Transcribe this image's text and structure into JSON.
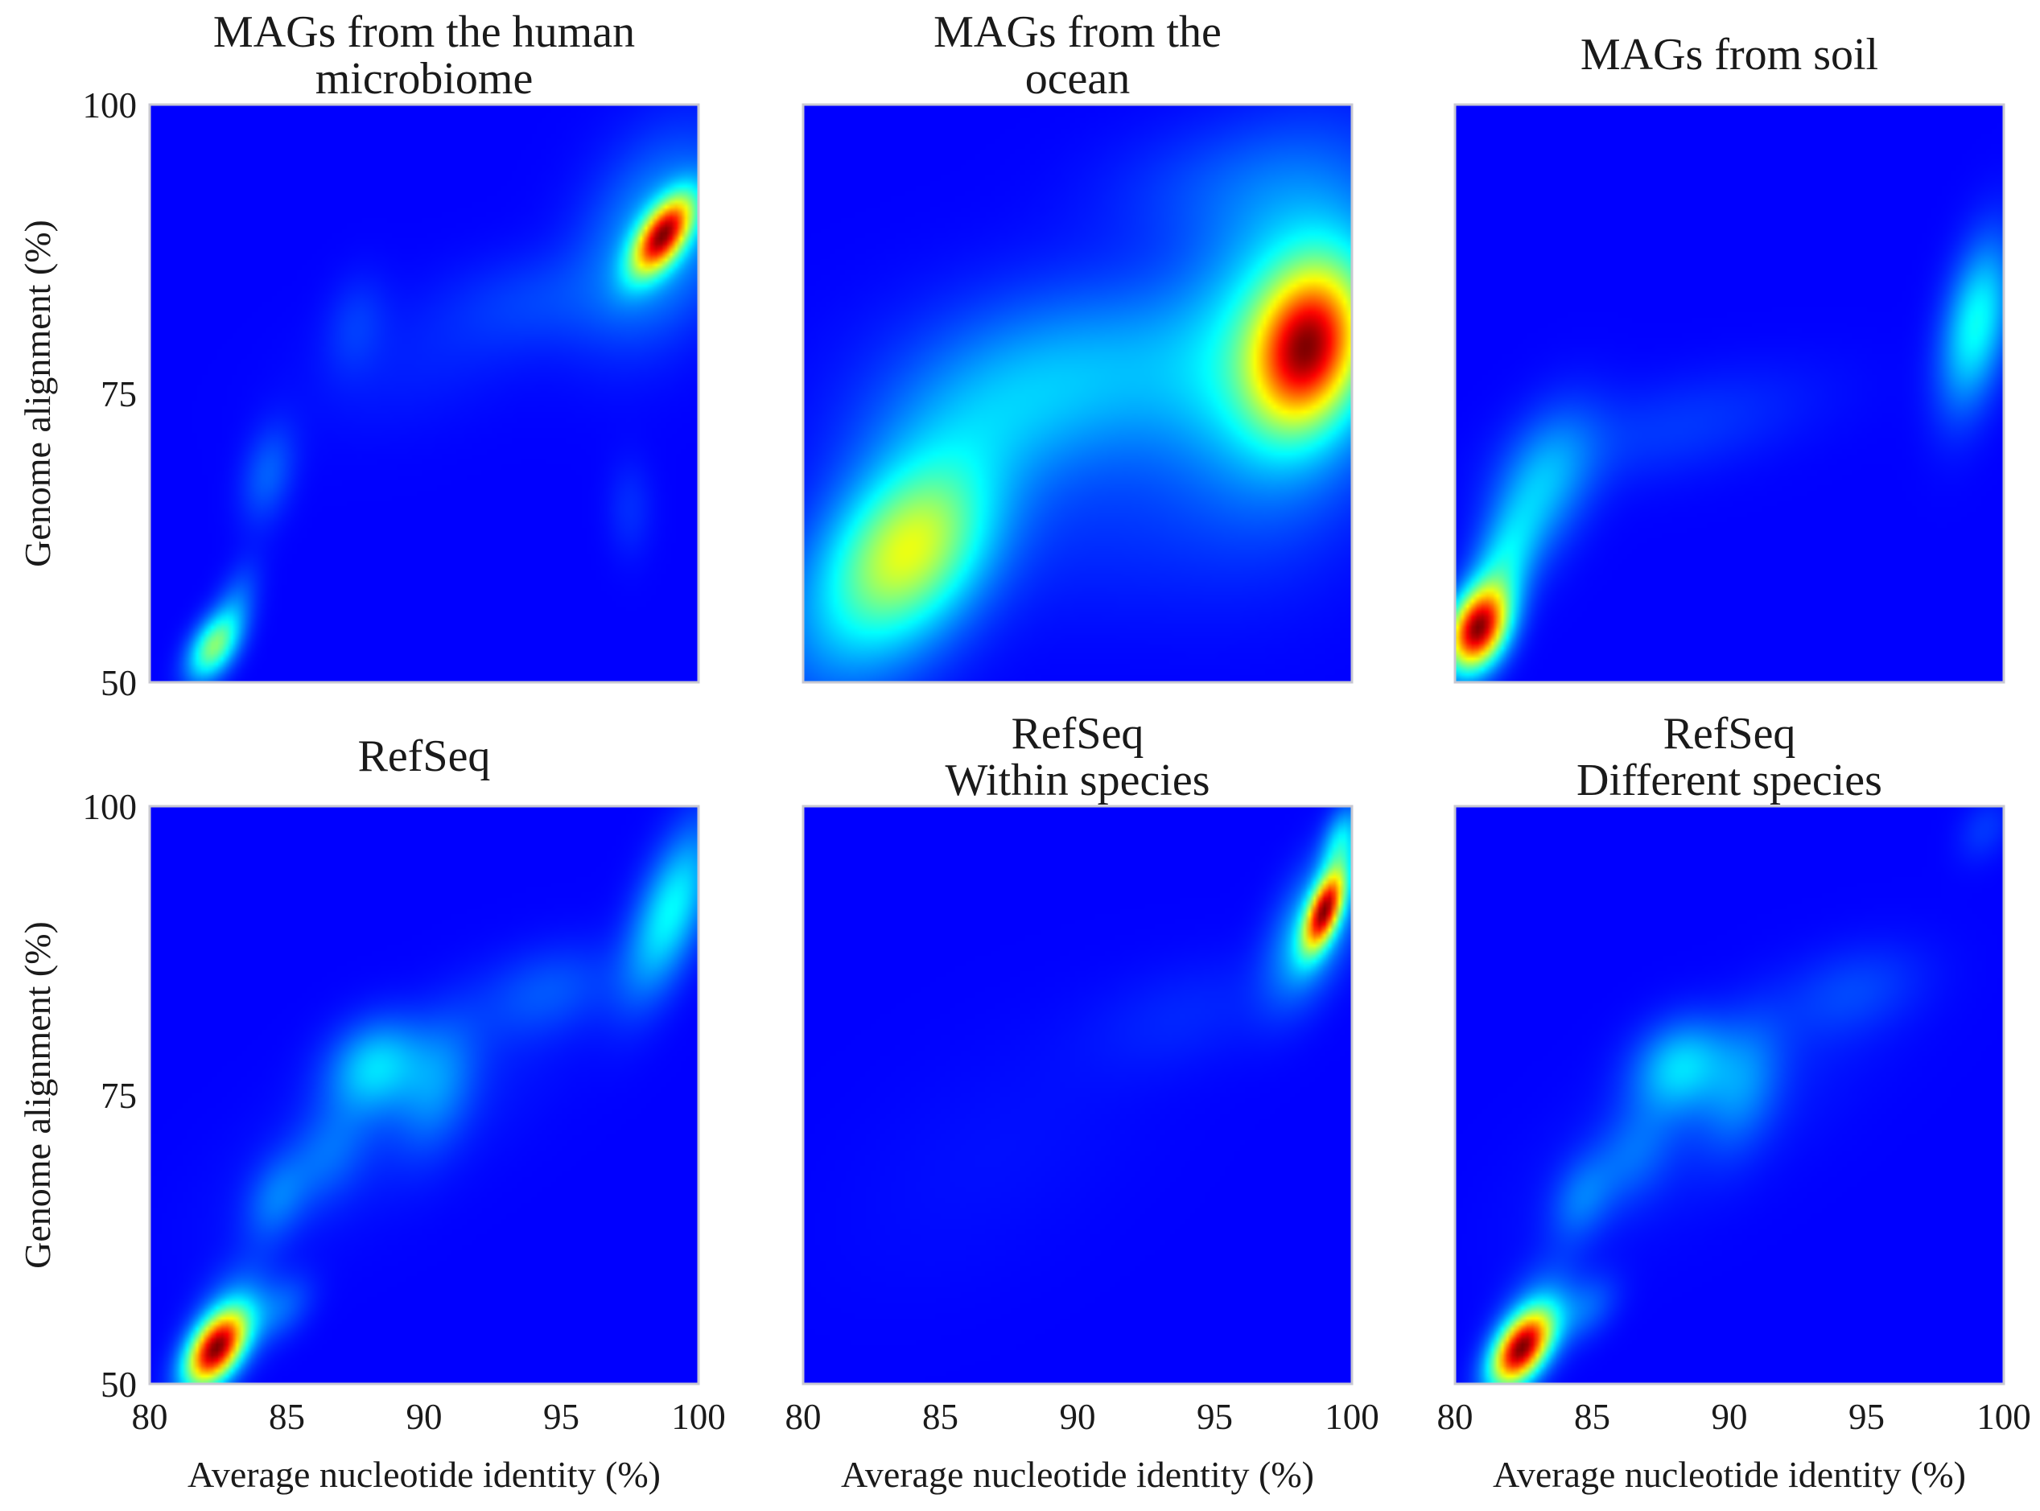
{
  "chart_data": [
    {
      "type": "heatmap",
      "title": [
        "MAGs from the human",
        "microbiome"
      ],
      "xlabel": "",
      "ylabel": "Genome alignment (%)",
      "xlim": [
        80,
        100
      ],
      "ylim": [
        50,
        100
      ],
      "xticks": [],
      "yticks": [
        "50",
        "75",
        "100"
      ],
      "grid": false,
      "density_peaks": [
        {
          "x": 98.7,
          "y": 88.7,
          "sx": 0.75,
          "sy": 2.3,
          "rho": 0.6,
          "w": 1.0
        },
        {
          "x": 98.6,
          "y": 88.6,
          "sx": 1.9,
          "sy": 6.0,
          "rho": 0.3,
          "w": 0.24
        },
        {
          "x": 82.3,
          "y": 53.0,
          "sx": 0.65,
          "sy": 2.0,
          "rho": 0.45,
          "w": 0.5
        },
        {
          "x": 83.1,
          "y": 56.5,
          "sx": 0.6,
          "sy": 2.6,
          "rho": 0.5,
          "w": 0.14
        },
        {
          "x": 84.3,
          "y": 68.0,
          "sx": 0.7,
          "sy": 3.0,
          "rho": 0.3,
          "w": 0.13
        },
        {
          "x": 87.5,
          "y": 81.0,
          "sx": 0.8,
          "sy": 3.0,
          "rho": 0.2,
          "w": 0.07
        },
        {
          "x": 97.5,
          "y": 65.0,
          "sx": 0.6,
          "sy": 3.0,
          "rho": 0.0,
          "w": 0.06
        },
        {
          "x": 94.0,
          "y": 83.0,
          "sx": 2.2,
          "sy": 3.0,
          "rho": 0.2,
          "w": 0.07
        },
        {
          "x": 90.0,
          "y": 78.0,
          "sx": 3.0,
          "sy": 4.5,
          "rho": 0.4,
          "w": 0.04
        }
      ]
    },
    {
      "type": "heatmap",
      "title": [
        "MAGs from the",
        "ocean"
      ],
      "xlabel": "",
      "ylabel": "",
      "xlim": [
        80,
        100
      ],
      "ylim": [
        50,
        100
      ],
      "xticks": [],
      "yticks": [],
      "grid": false,
      "density_peaks": [
        {
          "x": 98.4,
          "y": 79.0,
          "sx": 1.3,
          "sy": 4.5,
          "rho": 0.2,
          "w": 1.0
        },
        {
          "x": 98.0,
          "y": 80.0,
          "sx": 2.6,
          "sy": 9.5,
          "rho": 0.2,
          "w": 0.5
        },
        {
          "x": 84.0,
          "y": 62.0,
          "sx": 2.0,
          "sy": 5.0,
          "rho": 0.3,
          "w": 0.6
        },
        {
          "x": 82.5,
          "y": 57.0,
          "sx": 2.6,
          "sy": 6.5,
          "rho": 0.4,
          "w": 0.3
        },
        {
          "x": 91.0,
          "y": 77.0,
          "sx": 4.5,
          "sy": 5.5,
          "rho": 0.1,
          "w": 0.28
        },
        {
          "x": 86.0,
          "y": 72.0,
          "sx": 3.0,
          "sy": 5.0,
          "rho": 0.3,
          "w": 0.18
        },
        {
          "x": 95.0,
          "y": 93.0,
          "sx": 3.0,
          "sy": 4.0,
          "rho": 0.2,
          "w": 0.1
        },
        {
          "x": 91.0,
          "y": 64.0,
          "sx": 4.0,
          "sy": 6.0,
          "rho": 0.0,
          "w": 0.07
        }
      ]
    },
    {
      "type": "heatmap",
      "title": [
        "MAGs from soil"
      ],
      "xlabel": "",
      "ylabel": "",
      "xlim": [
        80,
        100
      ],
      "ylim": [
        50,
        100
      ],
      "xticks": [],
      "yticks": [],
      "grid": false,
      "density_peaks": [
        {
          "x": 80.8,
          "y": 54.5,
          "sx": 0.75,
          "sy": 2.4,
          "rho": 0.3,
          "w": 1.0
        },
        {
          "x": 81.6,
          "y": 59.0,
          "sx": 0.9,
          "sy": 4.0,
          "rho": 0.5,
          "w": 0.28
        },
        {
          "x": 83.2,
          "y": 67.0,
          "sx": 1.3,
          "sy": 4.5,
          "rho": 0.4,
          "w": 0.22
        },
        {
          "x": 99.0,
          "y": 81.0,
          "sx": 0.9,
          "sy": 5.0,
          "rho": 0.4,
          "w": 0.34
        },
        {
          "x": 88.0,
          "y": 72.0,
          "sx": 3.5,
          "sy": 3.5,
          "rho": 0.5,
          "w": 0.07
        }
      ]
    },
    {
      "type": "heatmap",
      "title": [
        "RefSeq"
      ],
      "xlabel": "Average nucleotide identity (%)",
      "ylabel": "Genome alignment (%)",
      "xlim": [
        80,
        100
      ],
      "ylim": [
        50,
        100
      ],
      "xticks": [
        "80",
        "85",
        "90",
        "95",
        "100"
      ],
      "yticks": [
        "50",
        "75",
        "100"
      ],
      "grid": false,
      "density_peaks": [
        {
          "x": 82.4,
          "y": 53.0,
          "sx": 0.75,
          "sy": 2.2,
          "rho": 0.5,
          "w": 1.0
        },
        {
          "x": 82.8,
          "y": 55.0,
          "sx": 1.0,
          "sy": 3.5,
          "rho": 0.5,
          "w": 0.2
        },
        {
          "x": 84.8,
          "y": 56.5,
          "sx": 0.8,
          "sy": 2.0,
          "rho": 0.4,
          "w": 0.12
        },
        {
          "x": 84.6,
          "y": 66.0,
          "sx": 0.8,
          "sy": 2.6,
          "rho": 0.3,
          "w": 0.13
        },
        {
          "x": 88.2,
          "y": 77.5,
          "sx": 1.2,
          "sy": 2.8,
          "rho": 0.2,
          "w": 0.26
        },
        {
          "x": 90.5,
          "y": 76.0,
          "sx": 1.0,
          "sy": 4.0,
          "rho": 0.3,
          "w": 0.14
        },
        {
          "x": 86.5,
          "y": 70.0,
          "sx": 1.0,
          "sy": 3.0,
          "rho": 0.3,
          "w": 0.1
        },
        {
          "x": 99.0,
          "y": 91.0,
          "sx": 1.1,
          "sy": 5.0,
          "rho": 0.6,
          "w": 0.33
        },
        {
          "x": 94.5,
          "y": 84.0,
          "sx": 1.8,
          "sy": 2.8,
          "rho": 0.3,
          "w": 0.1
        },
        {
          "x": 89.0,
          "y": 73.0,
          "sx": 4.0,
          "sy": 7.0,
          "rho": 0.7,
          "w": 0.05
        }
      ]
    },
    {
      "type": "heatmap",
      "title": [
        "RefSeq",
        "Within species"
      ],
      "xlabel": "Average nucleotide identity (%)",
      "ylabel": "",
      "xlim": [
        80,
        100
      ],
      "ylim": [
        50,
        100
      ],
      "xticks": [
        "80",
        "85",
        "90",
        "95",
        "100"
      ],
      "yticks": [],
      "grid": false,
      "density_peaks": [
        {
          "x": 99.0,
          "y": 91.0,
          "sx": 0.5,
          "sy": 2.3,
          "rho": 0.6,
          "w": 1.0
        },
        {
          "x": 98.6,
          "y": 89.5,
          "sx": 1.1,
          "sy": 4.2,
          "rho": 0.5,
          "w": 0.32
        },
        {
          "x": 99.6,
          "y": 97.0,
          "sx": 0.5,
          "sy": 2.2,
          "rho": 0.4,
          "w": 0.3
        },
        {
          "x": 94.0,
          "y": 82.0,
          "sx": 2.5,
          "sy": 3.5,
          "rho": 0.4,
          "w": 0.05
        },
        {
          "x": 87.0,
          "y": 70.0,
          "sx": 4.0,
          "sy": 8.0,
          "rho": 0.5,
          "w": 0.02
        }
      ]
    },
    {
      "type": "heatmap",
      "title": [
        "RefSeq",
        "Different species"
      ],
      "xlabel": "Average nucleotide identity (%)",
      "ylabel": "",
      "xlim": [
        80,
        100
      ],
      "ylim": [
        50,
        100
      ],
      "xticks": [
        "80",
        "85",
        "90",
        "95",
        "100"
      ],
      "yticks": [],
      "grid": false,
      "density_peaks": [
        {
          "x": 82.4,
          "y": 53.0,
          "sx": 0.75,
          "sy": 2.2,
          "rho": 0.5,
          "w": 1.0
        },
        {
          "x": 82.8,
          "y": 55.0,
          "sx": 1.0,
          "sy": 3.5,
          "rho": 0.5,
          "w": 0.2
        },
        {
          "x": 84.8,
          "y": 56.5,
          "sx": 0.8,
          "sy": 2.0,
          "rho": 0.4,
          "w": 0.12
        },
        {
          "x": 84.6,
          "y": 66.0,
          "sx": 0.8,
          "sy": 2.6,
          "rho": 0.3,
          "w": 0.13
        },
        {
          "x": 88.2,
          "y": 77.5,
          "sx": 1.2,
          "sy": 2.8,
          "rho": 0.2,
          "w": 0.26
        },
        {
          "x": 90.5,
          "y": 76.0,
          "sx": 1.0,
          "sy": 4.0,
          "rho": 0.3,
          "w": 0.14
        },
        {
          "x": 86.5,
          "y": 70.0,
          "sx": 1.0,
          "sy": 3.0,
          "rho": 0.3,
          "w": 0.1
        },
        {
          "x": 94.5,
          "y": 84.0,
          "sx": 1.8,
          "sy": 2.8,
          "rho": 0.3,
          "w": 0.08
        },
        {
          "x": 99.3,
          "y": 98.0,
          "sx": 0.7,
          "sy": 2.0,
          "rho": 0.3,
          "w": 0.07
        },
        {
          "x": 89.0,
          "y": 73.0,
          "sx": 4.0,
          "sy": 7.0,
          "rho": 0.7,
          "w": 0.05
        }
      ]
    }
  ],
  "colors": {
    "colormap": "jet",
    "background": "#ffffff",
    "frame": "#c8c8d2",
    "text": "#1a1a1a"
  }
}
